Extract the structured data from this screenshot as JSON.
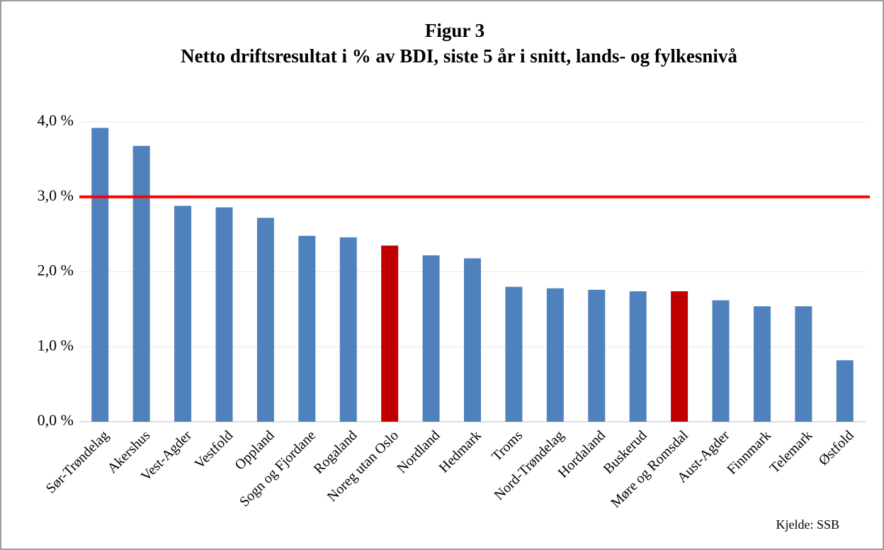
{
  "chart_data": {
    "type": "bar",
    "title": "Figur 3",
    "subtitle": "Netto driftsresultat i % av BDI, siste 5 år i snitt, lands- og fylkesnivå",
    "categories": [
      "Sør-Trøndelag",
      "Akershus",
      "Vest-Agder",
      "Vestfold",
      "Oppland",
      "Sogn og Fjordane",
      "Rogaland",
      "Noreg utan Oslo",
      "Nordland",
      "Hedmark",
      "Troms",
      "Nord-Trøndelag",
      "Hordaland",
      "Buskerud",
      "Møre og Romsdal",
      "Aust-Agder",
      "Finnmark",
      "Telemark",
      "Østfold"
    ],
    "values": [
      3.92,
      3.68,
      2.88,
      2.86,
      2.72,
      2.48,
      2.46,
      2.35,
      2.22,
      2.18,
      1.8,
      1.78,
      1.76,
      1.74,
      1.74,
      1.62,
      1.54,
      1.54,
      0.82
    ],
    "colors": [
      "#4f81bd",
      "#4f81bd",
      "#4f81bd",
      "#4f81bd",
      "#4f81bd",
      "#4f81bd",
      "#4f81bd",
      "#c00000",
      "#4f81bd",
      "#4f81bd",
      "#4f81bd",
      "#4f81bd",
      "#4f81bd",
      "#4f81bd",
      "#c00000",
      "#4f81bd",
      "#4f81bd",
      "#4f81bd",
      "#4f81bd"
    ],
    "reference_line": {
      "value": 3,
      "color": "#ff0000"
    },
    "ylim": [
      0,
      4
    ],
    "yticks": [
      {
        "value": 0,
        "label": "0,0 %"
      },
      {
        "value": 1,
        "label": "1,0 %"
      },
      {
        "value": 2,
        "label": "2,0 %"
      },
      {
        "value": 3,
        "label": "3,0 %"
      },
      {
        "value": 4,
        "label": "4,0 %"
      }
    ],
    "grid": true,
    "annotation": "Kjelde: SSB"
  }
}
